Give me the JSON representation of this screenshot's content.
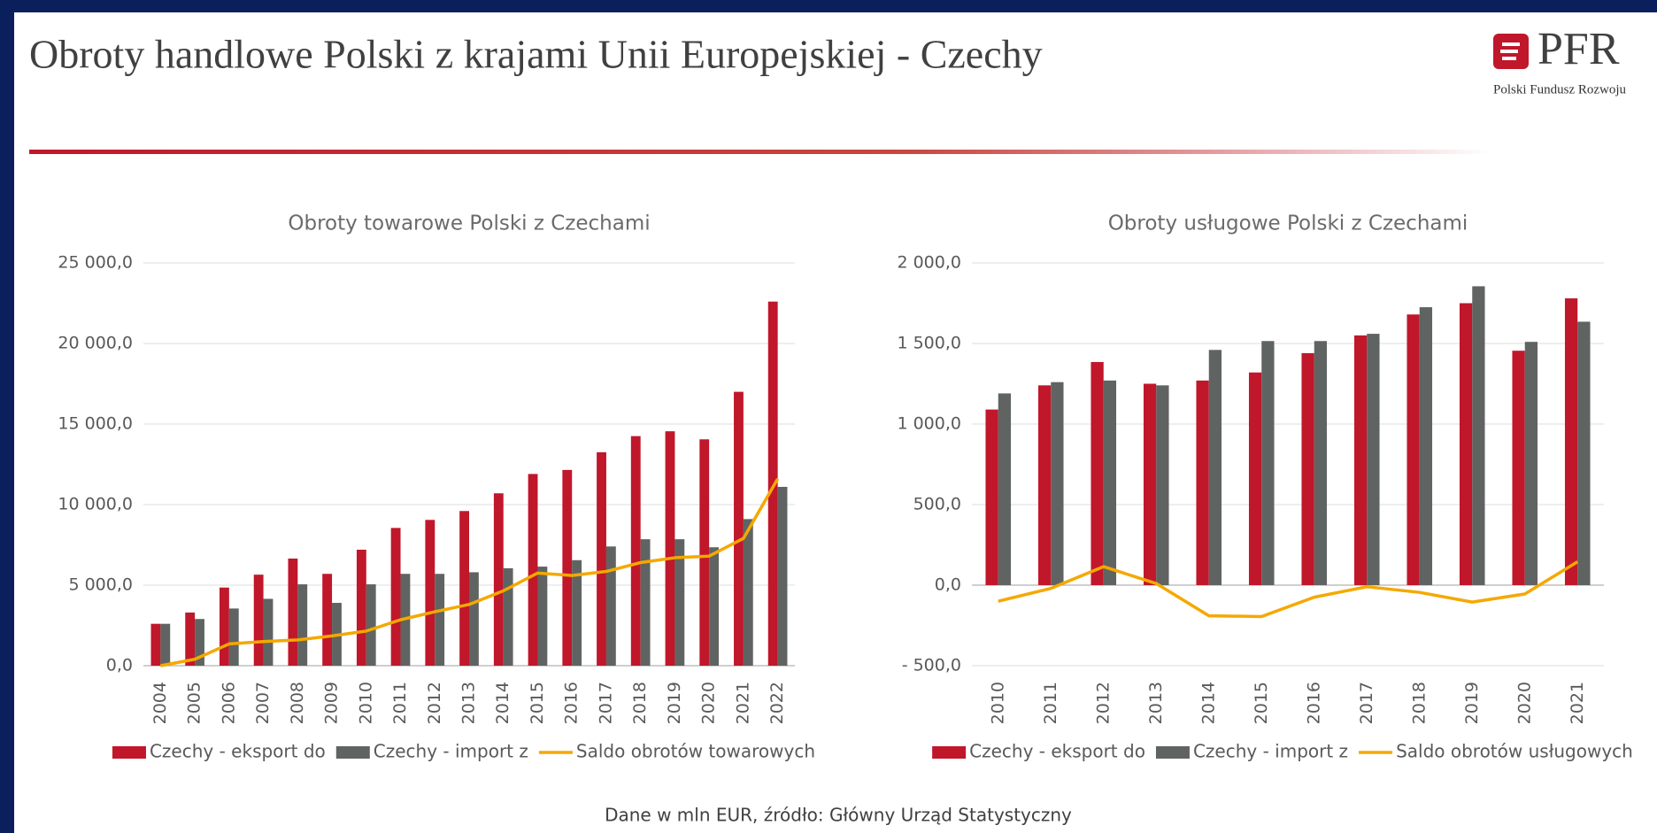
{
  "header": {
    "title": "Obroty handlowe Polski z krajami Unii Europejskiej - Czechy",
    "logo": "PFR",
    "logo_subtitle": "Polski Fundusz Rozwoju"
  },
  "footer": "Dane w mln EUR, źródło: Główny Urząd Statystyczny",
  "chart_data": [
    {
      "type": "bar",
      "title": "Obroty towarowe Polski z Czechami",
      "categories": [
        "2004",
        "2005",
        "2006",
        "2007",
        "2008",
        "2009",
        "2010",
        "2011",
        "2012",
        "2013",
        "2014",
        "2015",
        "2016",
        "2017",
        "2018",
        "2019",
        "2020",
        "2021",
        "2022"
      ],
      "series": [
        {
          "name": "Czechy - eksport do",
          "type": "bar",
          "color": "#c0172b",
          "values": [
            2600,
            3300,
            4850,
            5650,
            6650,
            5700,
            7200,
            8550,
            9050,
            9600,
            10700,
            11900,
            12150,
            13250,
            14250,
            14550,
            14050,
            17000,
            22600
          ]
        },
        {
          "name": "Czechy - import z",
          "type": "bar",
          "color": "#5f6462",
          "values": [
            2600,
            2900,
            3550,
            4150,
            5050,
            3900,
            5050,
            5700,
            5700,
            5800,
            6050,
            6150,
            6550,
            7400,
            7850,
            7850,
            7350,
            9100,
            11100
          ]
        },
        {
          "name": "Saldo obrotów towarowych",
          "type": "line",
          "color": "#f5a800",
          "values": [
            0,
            400,
            1350,
            1500,
            1600,
            1850,
            2150,
            2850,
            3350,
            3800,
            4650,
            5750,
            5600,
            5850,
            6400,
            6700,
            6800,
            7900,
            11600
          ]
        }
      ],
      "ylim": [
        0,
        25000
      ],
      "yticks": [
        {
          "value": 0,
          "label": "0,0"
        },
        {
          "value": 5000,
          "label": "5 000,0"
        },
        {
          "value": 10000,
          "label": "10 000,0"
        },
        {
          "value": 15000,
          "label": "15 000,0"
        },
        {
          "value": 20000,
          "label": "20 000,0"
        },
        {
          "value": 25000,
          "label": "25 000,0"
        }
      ],
      "grid": true,
      "legend": "bottom"
    },
    {
      "type": "bar",
      "title": "Obroty usługowe Polski z Czechami",
      "categories": [
        "2010",
        "2011",
        "2012",
        "2013",
        "2014",
        "2015",
        "2016",
        "2017",
        "2018",
        "2019",
        "2020",
        "2021"
      ],
      "series": [
        {
          "name": "Czechy - eksport do",
          "type": "bar",
          "color": "#c0172b",
          "values": [
            1090,
            1240,
            1385,
            1250,
            1270,
            1320,
            1440,
            1550,
            1680,
            1750,
            1455,
            1780
          ]
        },
        {
          "name": "Czechy - import z",
          "type": "bar",
          "color": "#5f6462",
          "values": [
            1190,
            1260,
            1270,
            1240,
            1460,
            1515,
            1515,
            1560,
            1725,
            1855,
            1510,
            1635
          ]
        },
        {
          "name": "Saldo obrotów usługowych",
          "type": "line",
          "color": "#f5a800",
          "values": [
            -100,
            -20,
            115,
            10,
            -190,
            -195,
            -75,
            -10,
            -45,
            -105,
            -55,
            145
          ]
        }
      ],
      "ylim": [
        -500,
        2000
      ],
      "yticks": [
        {
          "value": -500,
          "label": "- 500,0"
        },
        {
          "value": 0,
          "label": "0,0"
        },
        {
          "value": 500,
          "label": "500,0"
        },
        {
          "value": 1000,
          "label": "1 000,0"
        },
        {
          "value": 1500,
          "label": "1 500,0"
        },
        {
          "value": 2000,
          "label": "2 000,0"
        }
      ],
      "grid": true,
      "legend": "bottom"
    }
  ]
}
